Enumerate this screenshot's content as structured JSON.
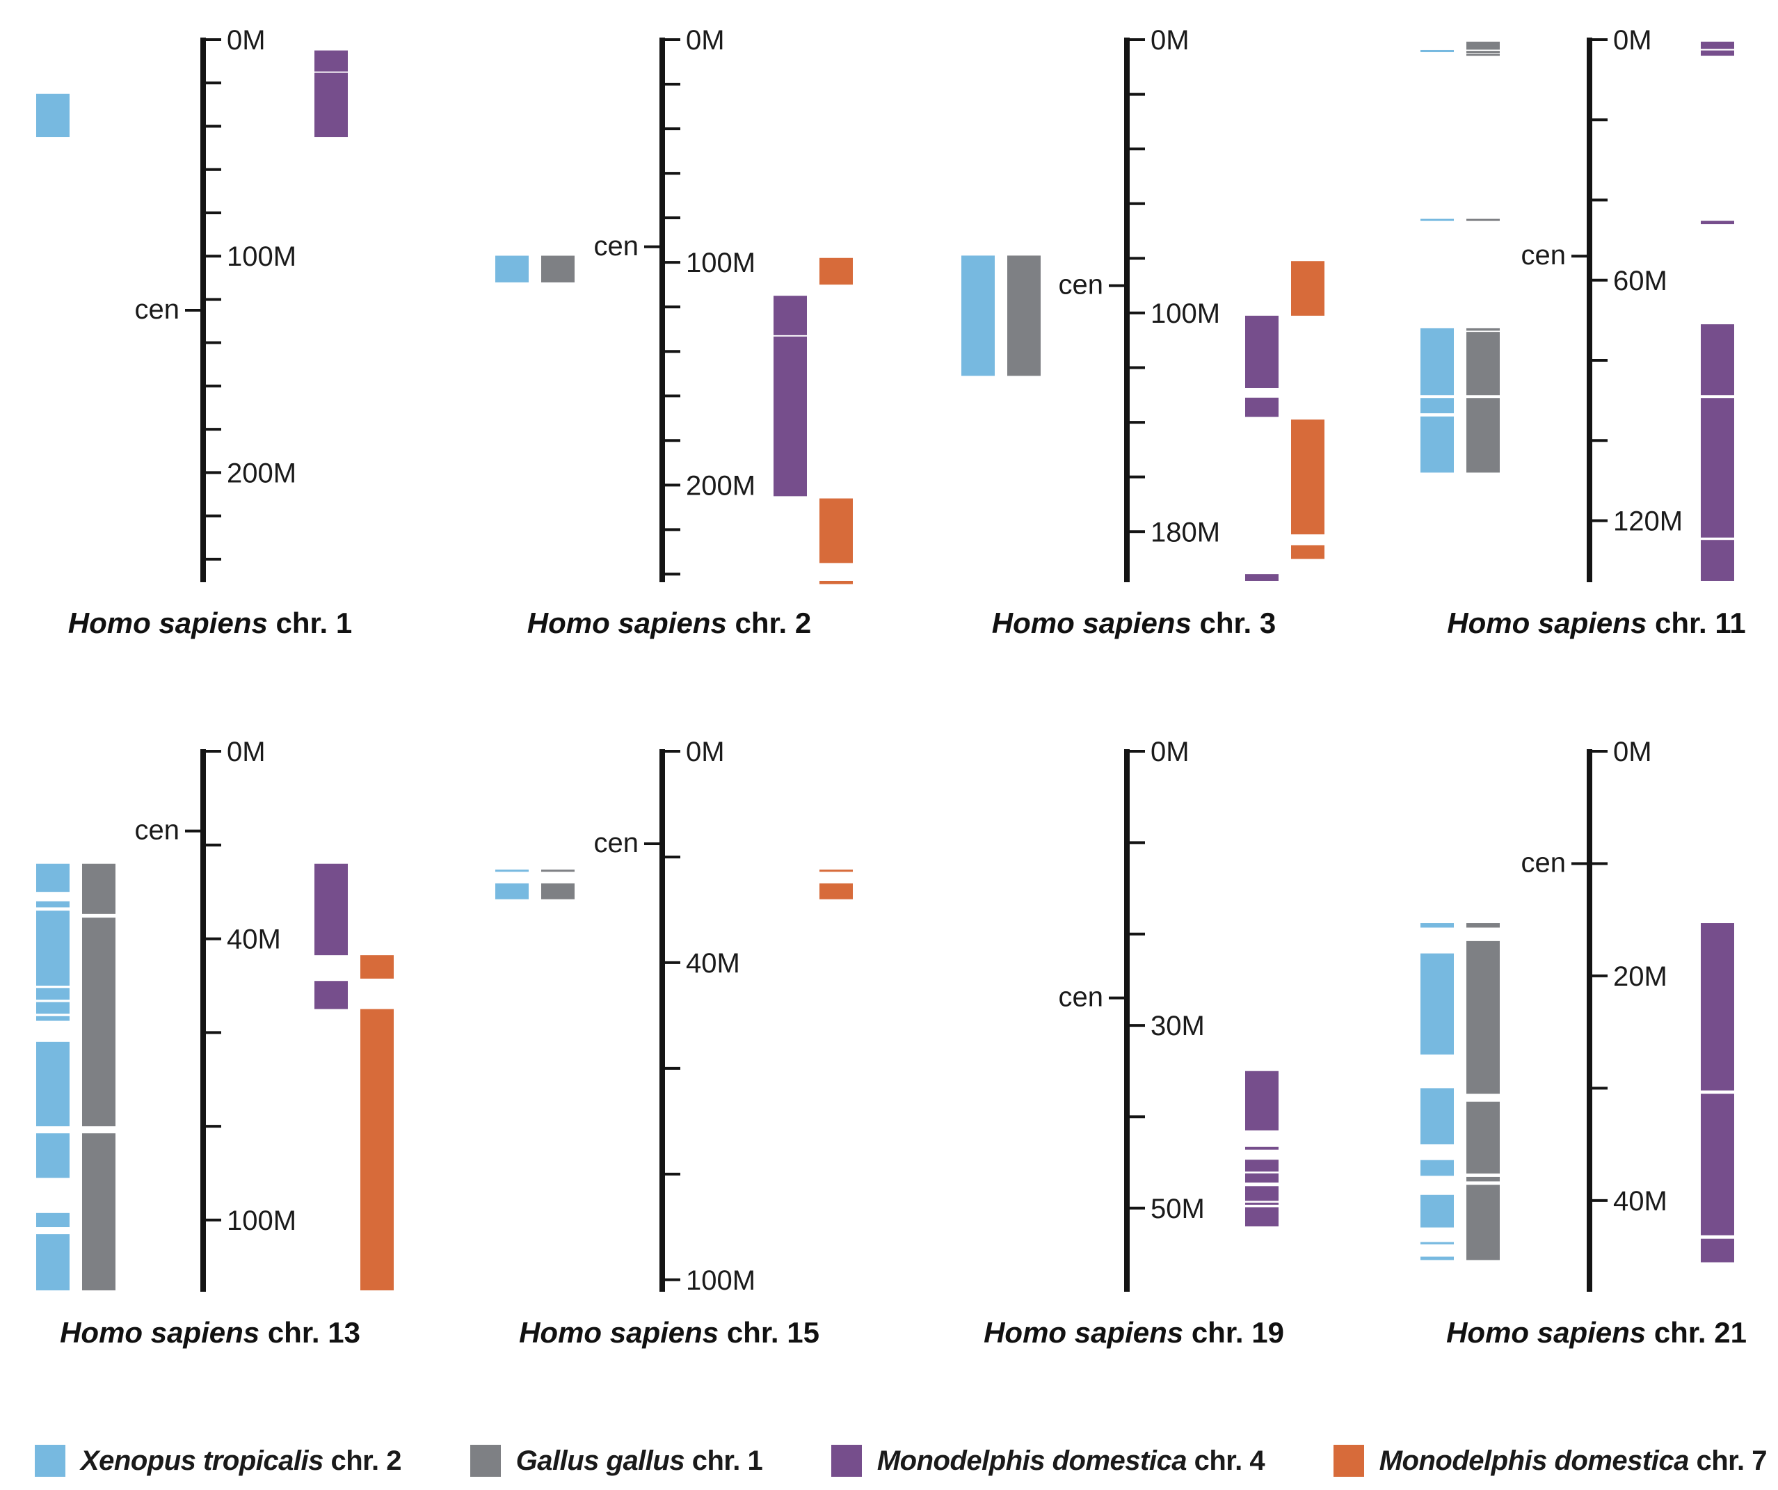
{
  "chart_data": {
    "type": "chromosome-synteny-map",
    "species": [
      {
        "key": "xen",
        "genus_species": "Xenopus tropicalis",
        "suffix": "chr. 2",
        "color": "#77b9e0"
      },
      {
        "key": "gal",
        "genus_species": "Gallus gallus",
        "suffix": "chr. 1",
        "color": "#7e8084"
      },
      {
        "key": "mon4",
        "genus_species": "Monodelphis domestica",
        "suffix": "chr. 4",
        "color": "#764e8c"
      },
      {
        "key": "mon7",
        "genus_species": "Monodelphis domestica",
        "suffix": "chr. 7",
        "color": "#d76b3a"
      }
    ],
    "units": "Mb",
    "panels": [
      {
        "title_italic": "Homo sapiens",
        "title_rest": "chr. 1",
        "length": 250,
        "tick_step": 20,
        "labels": [
          {
            "v": 0,
            "t": "0M"
          },
          {
            "v": 100,
            "t": "100M"
          },
          {
            "v": 200,
            "t": "200M"
          }
        ],
        "cen": 125,
        "cen_label": "cen",
        "left_tracks": [
          {
            "species": "xen",
            "blocks": [
              [
                25,
                45
              ]
            ]
          },
          {
            "species": "gal",
            "blocks": []
          }
        ],
        "right_tracks": [
          {
            "species": "mon4",
            "blocks": [
              [
                5,
                14.7
              ],
              [
                15.3,
                45
              ]
            ]
          },
          {
            "species": "mon7",
            "blocks": []
          }
        ]
      },
      {
        "title_italic": "Homo sapiens",
        "title_rest": "chr. 2",
        "length": 243,
        "tick_step": 20,
        "labels": [
          {
            "v": 0,
            "t": "0M"
          },
          {
            "v": 100,
            "t": "100M"
          },
          {
            "v": 200,
            "t": "200M"
          }
        ],
        "cen": 93,
        "cen_label": "cen",
        "left_tracks": [
          {
            "species": "xen",
            "blocks": [
              [
                97,
                109
              ]
            ]
          },
          {
            "species": "gal",
            "blocks": [
              [
                97,
                109
              ]
            ]
          }
        ],
        "right_tracks": [
          {
            "species": "mon4",
            "blocks": [
              [
                115,
                132.7
              ],
              [
                133.3,
                205
              ]
            ]
          },
          {
            "species": "mon7",
            "blocks": [
              [
                98,
                110
              ],
              [
                206,
                235
              ],
              [
                243,
                244.5
              ]
            ]
          }
        ]
      },
      {
        "title_italic": "Homo sapiens",
        "title_rest": "chr. 3",
        "length": 198,
        "tick_step": 20,
        "labels": [
          {
            "v": 0,
            "t": "0M"
          },
          {
            "v": 100,
            "t": "100M"
          },
          {
            "v": 180,
            "t": "180M"
          }
        ],
        "cen": 90,
        "cen_label": "cen",
        "left_tracks": [
          {
            "species": "xen",
            "blocks": [
              [
                79,
                123
              ]
            ]
          },
          {
            "species": "gal",
            "blocks": [
              [
                79,
                123
              ]
            ]
          }
        ],
        "right_tracks": [
          {
            "species": "mon4",
            "blocks": [
              [
                101,
                127.5
              ],
              [
                131,
                138
              ],
              [
                195.5,
                198
              ]
            ]
          },
          {
            "species": "mon7",
            "blocks": [
              [
                81,
                101
              ],
              [
                139,
                181
              ],
              [
                185,
                190
              ]
            ]
          }
        ]
      },
      {
        "title_italic": "Homo sapiens",
        "title_rest": "chr. 11",
        "length": 135,
        "tick_step": 20,
        "labels": [
          {
            "v": 0,
            "t": "0M"
          },
          {
            "v": 60,
            "t": "60M"
          },
          {
            "v": 120,
            "t": "120M"
          }
        ],
        "cen": 54,
        "cen_label": "cen",
        "left_tracks": [
          {
            "species": "xen",
            "blocks": [
              [
                2.6,
                3.1
              ],
              [
                44.7,
                45.2
              ],
              [
                72,
                88.7
              ],
              [
                89.4,
                93.2
              ],
              [
                94,
                108
              ]
            ]
          },
          {
            "species": "gal",
            "blocks": [
              [
                0.5,
                2.5
              ],
              [
                2.8,
                3.2
              ],
              [
                3.5,
                3.8
              ],
              [
                44.7,
                45.1
              ],
              [
                72,
                72.6
              ],
              [
                72.9,
                88.7
              ],
              [
                89.4,
                108
              ]
            ]
          }
        ],
        "right_tracks": [
          {
            "species": "mon4",
            "blocks": [
              [
                0.5,
                2.3
              ],
              [
                2.7,
                4
              ],
              [
                45.2,
                46
              ],
              [
                71,
                88.7
              ],
              [
                89.4,
                124.2
              ],
              [
                124.8,
                135
              ]
            ]
          },
          {
            "species": "mon7",
            "blocks": []
          }
        ]
      },
      {
        "title_italic": "Homo sapiens",
        "title_rest": "chr. 13",
        "length": 115,
        "tick_step": 20,
        "labels": [
          {
            "v": 0,
            "t": "0M"
          },
          {
            "v": 40,
            "t": "40M"
          },
          {
            "v": 100,
            "t": "100M"
          }
        ],
        "cen": 17,
        "cen_label": "cen",
        "left_tracks": [
          {
            "species": "xen",
            "blocks": [
              [
                24,
                30
              ],
              [
                32,
                33.3
              ],
              [
                34,
                50
              ],
              [
                50.5,
                53
              ],
              [
                53.5,
                56
              ],
              [
                56.5,
                57.5
              ],
              [
                62,
                80
              ],
              [
                81.5,
                91
              ],
              [
                98.5,
                101.5
              ],
              [
                103,
                115
              ]
            ]
          },
          {
            "species": "gal",
            "blocks": [
              [
                24,
                34.7
              ],
              [
                35.5,
                80
              ],
              [
                81.5,
                115
              ]
            ]
          }
        ],
        "right_tracks": [
          {
            "species": "mon4",
            "blocks": [
              [
                24,
                43.5
              ],
              [
                49,
                55
              ]
            ]
          },
          {
            "species": "mon7",
            "blocks": [
              [
                43.5,
                48.5
              ],
              [
                55,
                115
              ]
            ]
          }
        ]
      },
      {
        "title_italic": "Homo sapiens",
        "title_rest": "chr. 15",
        "length": 102,
        "tick_step": 20,
        "labels": [
          {
            "v": 0,
            "t": "0M"
          },
          {
            "v": 40,
            "t": "40M"
          },
          {
            "v": 100,
            "t": "100M"
          }
        ],
        "cen": 17.5,
        "cen_label": "cen",
        "left_tracks": [
          {
            "species": "xen",
            "blocks": [
              [
                22.4,
                22.8
              ],
              [
                25,
                28
              ]
            ]
          },
          {
            "species": "gal",
            "blocks": [
              [
                22.4,
                22.8
              ],
              [
                25,
                28
              ]
            ]
          }
        ],
        "right_tracks": [
          {
            "species": "mon4",
            "blocks": []
          },
          {
            "species": "mon7",
            "blocks": [
              [
                22.4,
                22.8
              ],
              [
                25,
                28
              ]
            ]
          }
        ]
      },
      {
        "title_italic": "Homo sapiens",
        "title_rest": "chr. 19",
        "length": 59,
        "tick_step": 10,
        "labels": [
          {
            "v": 0,
            "t": "0M"
          },
          {
            "v": 30,
            "t": "30M"
          },
          {
            "v": 50,
            "t": "50M"
          }
        ],
        "cen": 27,
        "cen_label": "cen",
        "left_tracks": [
          {
            "species": "xen",
            "blocks": []
          },
          {
            "species": "gal",
            "blocks": []
          }
        ],
        "right_tracks": [
          {
            "species": "mon4",
            "blocks": [
              [
                35,
                41.5
              ],
              [
                43.3,
                43.6
              ],
              [
                44.7,
                46
              ],
              [
                46.2,
                47.2
              ],
              [
                47.6,
                49.2
              ],
              [
                49.4,
                49.6
              ],
              [
                49.9,
                52
              ]
            ]
          },
          {
            "species": "mon7",
            "blocks": []
          }
        ]
      },
      {
        "title_italic": "Homo sapiens",
        "title_rest": "chr. 21",
        "length": 48,
        "tick_step": 10,
        "labels": [
          {
            "v": 0,
            "t": "0M"
          },
          {
            "v": 20,
            "t": "20M"
          },
          {
            "v": 40,
            "t": "40M"
          }
        ],
        "cen": 10,
        "cen_label": "cen",
        "left_tracks": [
          {
            "species": "xen",
            "blocks": [
              [
                15.3,
                15.7
              ],
              [
                18,
                27
              ],
              [
                30,
                35
              ],
              [
                36.4,
                37.8
              ],
              [
                39.5,
                42.4
              ],
              [
                43.7,
                43.9
              ],
              [
                45,
                45.3
              ]
            ]
          },
          {
            "species": "gal",
            "blocks": [
              [
                15.3,
                15.7
              ],
              [
                16.9,
                30.5
              ],
              [
                31.2,
                37.6
              ],
              [
                37.9,
                38.3
              ],
              [
                38.6,
                45.3
              ]
            ]
          }
        ],
        "right_tracks": [
          {
            "species": "mon4",
            "blocks": [
              [
                15.3,
                30.2
              ],
              [
                30.5,
                43.1
              ],
              [
                43.4,
                45.5
              ]
            ]
          },
          {
            "species": "mon7",
            "blocks": []
          }
        ]
      }
    ]
  }
}
